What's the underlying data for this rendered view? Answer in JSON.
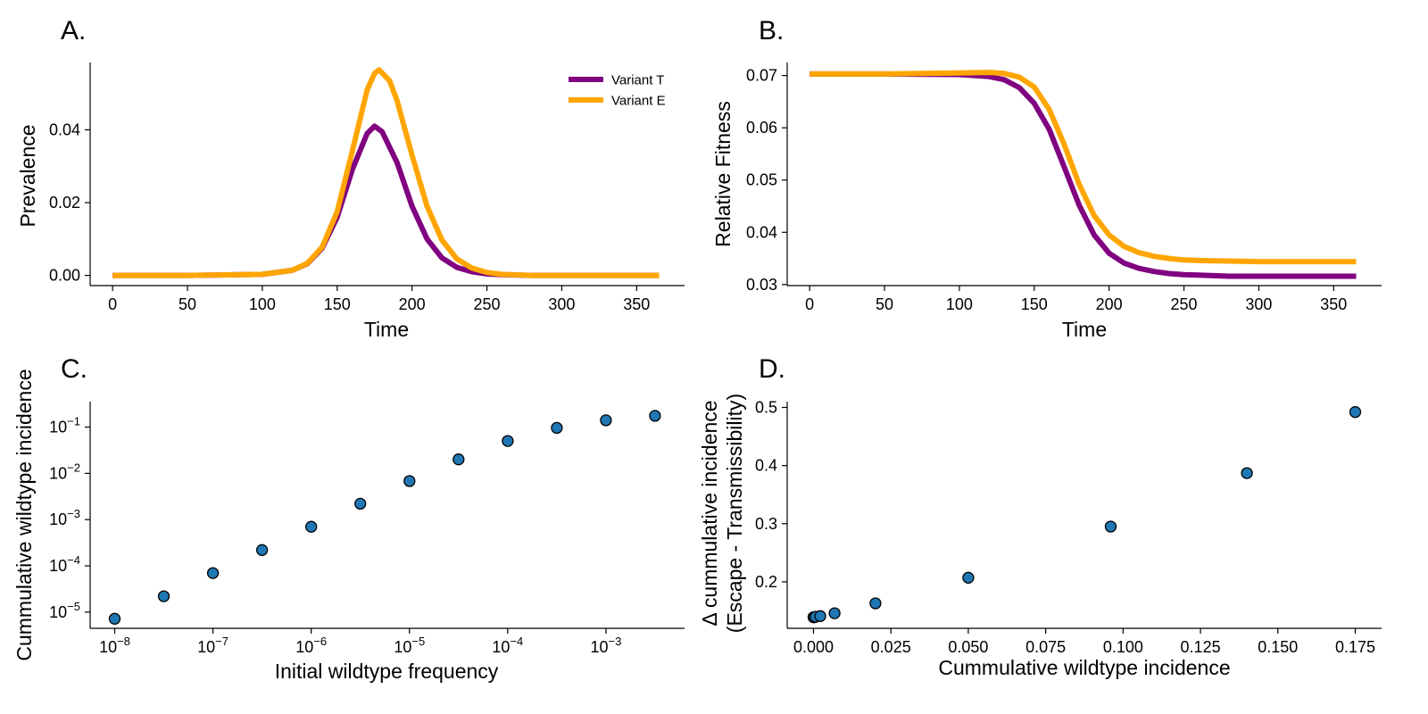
{
  "colors": {
    "variant_t": "#800080",
    "variant_e": "#FFA500",
    "markers": "#1f77b4"
  },
  "chart_data": [
    {
      "id": "A",
      "panel_label": "A.",
      "type": "line",
      "xlabel": "Time",
      "ylabel": "Prevalence",
      "xlim": [
        -15,
        382
      ],
      "ylim": [
        -0.0028,
        0.0585
      ],
      "xticks": [
        0,
        50,
        100,
        150,
        200,
        250,
        300,
        350
      ],
      "xtick_labels": [
        "0",
        "50",
        "100",
        "150",
        "200",
        "250",
        "300",
        "350"
      ],
      "yticks": [
        0.0,
        0.02,
        0.04
      ],
      "ytick_labels": [
        "0.00",
        "0.02",
        "0.04"
      ],
      "legend_position": "top-right",
      "series": [
        {
          "name": "Variant T",
          "color": "#800080",
          "x": [
            0,
            50,
            100,
            120,
            130,
            140,
            150,
            160,
            170,
            175,
            180,
            190,
            200,
            210,
            220,
            230,
            240,
            250,
            260,
            280,
            300,
            365
          ],
          "y": [
            0,
            0,
            0.0003,
            0.0014,
            0.0032,
            0.0075,
            0.016,
            0.029,
            0.039,
            0.041,
            0.0395,
            0.031,
            0.019,
            0.01,
            0.0048,
            0.0022,
            0.001,
            0.0004,
            0.0002,
            0,
            0,
            0
          ]
        },
        {
          "name": "Variant E",
          "color": "#FFA500",
          "x": [
            0,
            50,
            100,
            120,
            130,
            140,
            150,
            160,
            170,
            175,
            178,
            185,
            190,
            200,
            210,
            220,
            230,
            240,
            250,
            260,
            280,
            300,
            365
          ],
          "y": [
            0,
            0,
            0.0003,
            0.0014,
            0.0033,
            0.0078,
            0.0175,
            0.034,
            0.051,
            0.0555,
            0.0565,
            0.0535,
            0.048,
            0.033,
            0.019,
            0.0097,
            0.0045,
            0.002,
            0.0008,
            0.0003,
            0,
            0,
            0
          ]
        }
      ]
    },
    {
      "id": "B",
      "panel_label": "B.",
      "type": "line",
      "xlabel": "Time",
      "ylabel": "Relative Fitness",
      "xlim": [
        -15,
        382
      ],
      "ylim": [
        0.0298,
        0.0725
      ],
      "xticks": [
        0,
        50,
        100,
        150,
        200,
        250,
        300,
        350
      ],
      "xtick_labels": [
        "0",
        "50",
        "100",
        "150",
        "200",
        "250",
        "300",
        "350"
      ],
      "yticks": [
        0.03,
        0.04,
        0.05,
        0.06,
        0.07
      ],
      "ytick_labels": [
        "0.03",
        "0.04",
        "0.05",
        "0.06",
        "0.07"
      ],
      "series": [
        {
          "name": "",
          "color": "#800080",
          "x": [
            0,
            50,
            100,
            120,
            130,
            140,
            150,
            160,
            170,
            180,
            190,
            200,
            210,
            220,
            230,
            240,
            250,
            260,
            280,
            300,
            365
          ],
          "y": [
            0.0703,
            0.0703,
            0.0702,
            0.0698,
            0.0692,
            0.0677,
            0.0647,
            0.0597,
            0.0525,
            0.0452,
            0.0395,
            0.036,
            0.0341,
            0.0331,
            0.0325,
            0.0321,
            0.0319,
            0.0318,
            0.0316,
            0.0316,
            0.0316
          ]
        },
        {
          "name": "",
          "color": "#FFA500",
          "x": [
            0,
            50,
            100,
            120,
            130,
            140,
            150,
            160,
            170,
            180,
            190,
            200,
            210,
            220,
            230,
            240,
            250,
            260,
            280,
            300,
            365
          ],
          "y": [
            0.0703,
            0.0703,
            0.0705,
            0.0706,
            0.0704,
            0.0697,
            0.0678,
            0.0635,
            0.0568,
            0.0492,
            0.0432,
            0.0395,
            0.0373,
            0.0361,
            0.0354,
            0.035,
            0.0347,
            0.0346,
            0.0345,
            0.0344,
            0.0344
          ]
        }
      ]
    },
    {
      "id": "C",
      "panel_label": "C.",
      "type": "scatter",
      "xlabel": "Initial wildtype frequency",
      "ylabel": "Cummulative wildtype incidence",
      "xscale": "log",
      "yscale": "log",
      "xlim_log10": [
        -8.25,
        -2.2
      ],
      "ylim_log10": [
        -5.35,
        -0.45
      ],
      "xticks_log10": [
        -8,
        -7,
        -6,
        -5,
        -4,
        -3
      ],
      "xtick_labels": [
        {
          "base": "10",
          "exp": "−8"
        },
        {
          "base": "10",
          "exp": "−7"
        },
        {
          "base": "10",
          "exp": "−6"
        },
        {
          "base": "10",
          "exp": "−5"
        },
        {
          "base": "10",
          "exp": "−4"
        },
        {
          "base": "10",
          "exp": "−3"
        }
      ],
      "yticks_log10": [
        -5,
        -4,
        -3,
        -2,
        -1
      ],
      "ytick_labels": [
        {
          "base": "10",
          "exp": "−5"
        },
        {
          "base": "10",
          "exp": "−4"
        },
        {
          "base": "10",
          "exp": "−3"
        },
        {
          "base": "10",
          "exp": "−2"
        },
        {
          "base": "10",
          "exp": "−1"
        }
      ],
      "points": {
        "x": [
          1e-08,
          3.16e-08,
          1e-07,
          3.16e-07,
          1e-06,
          3.16e-06,
          1e-05,
          3.16e-05,
          0.0001,
          0.000316,
          0.001,
          0.00316
        ],
        "y": [
          7.2e-06,
          2.2e-05,
          7e-05,
          0.00022,
          0.0007,
          0.0022,
          0.0068,
          0.02,
          0.05,
          0.096,
          0.14,
          0.175
        ]
      }
    },
    {
      "id": "D",
      "panel_label": "D.",
      "type": "scatter",
      "xlabel": "Cummulative wildtype incidence",
      "ylabel_lines": [
        "Δ cummulative incidence",
        "(Escape - Transmissibility)"
      ],
      "xlim": [
        -0.0085,
        0.1835
      ],
      "ylim": [
        0.12,
        0.51
      ],
      "xticks": [
        0.0,
        0.025,
        0.05,
        0.075,
        0.1,
        0.125,
        0.15,
        0.175
      ],
      "xtick_labels": [
        "0.000",
        "0.025",
        "0.050",
        "0.075",
        "0.100",
        "0.125",
        "0.150",
        "0.175"
      ],
      "yticks": [
        0.2,
        0.3,
        0.4,
        0.5
      ],
      "ytick_labels": [
        "0.2",
        "0.3",
        "0.4",
        "0.5"
      ],
      "points": {
        "x": [
          0.0,
          0.0001,
          0.0002,
          0.0007,
          0.0022,
          0.0068,
          0.02,
          0.05,
          0.096,
          0.14,
          0.175
        ],
        "y": [
          0.139,
          0.139,
          0.139,
          0.14,
          0.141,
          0.146,
          0.163,
          0.207,
          0.295,
          0.387,
          0.492
        ]
      }
    }
  ]
}
